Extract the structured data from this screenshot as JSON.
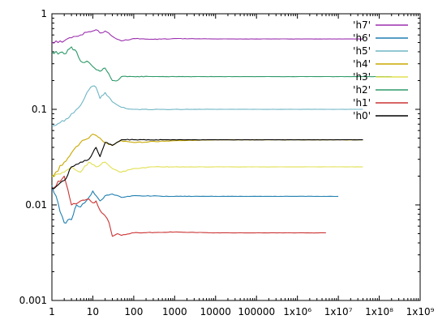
{
  "chart_data": {
    "type": "line",
    "title": "",
    "xlabel": "",
    "ylabel": "",
    "xscale": "log",
    "yscale": "log",
    "xlim": [
      1,
      1000000000
    ],
    "ylim": [
      0.001,
      1
    ],
    "grid": false,
    "legend_position": "top-right",
    "x_ticks": [
      {
        "value": 1,
        "label": "1"
      },
      {
        "value": 10,
        "label": "10"
      },
      {
        "value": 100,
        "label": "100"
      },
      {
        "value": 1000,
        "label": "1000"
      },
      {
        "value": 10000,
        "label": "10000"
      },
      {
        "value": 100000,
        "label": "100000"
      },
      {
        "value": 1000000,
        "label": "1x10⁶"
      },
      {
        "value": 10000000,
        "label": "1x10⁷"
      },
      {
        "value": 100000000,
        "label": "1x10⁸"
      },
      {
        "value": 1000000000,
        "label": "1x10⁹"
      }
    ],
    "y_ticks": [
      {
        "value": 1,
        "label": "1"
      },
      {
        "value": 0.1,
        "label": "0.1"
      },
      {
        "value": 0.01,
        "label": "0.01"
      },
      {
        "value": 0.001,
        "label": "0.001"
      }
    ],
    "series": [
      {
        "name": "'h7'",
        "color": "#9b2fae",
        "x": [
          1,
          2,
          3,
          5,
          8,
          12,
          15,
          20,
          30,
          50,
          100,
          300,
          1000,
          10000,
          100000,
          1000000,
          10000000,
          40000000
        ],
        "y": [
          0.5,
          0.52,
          0.56,
          0.6,
          0.65,
          0.68,
          0.63,
          0.66,
          0.58,
          0.52,
          0.55,
          0.54,
          0.55,
          0.545,
          0.545,
          0.545,
          0.545,
          0.545
        ]
      },
      {
        "name": "'h6'",
        "color": "#1f7fb0",
        "x": [
          1,
          2,
          3,
          4,
          5,
          8,
          10,
          15,
          20,
          30,
          50,
          100,
          1000,
          10000,
          100000,
          1000000,
          10000000
        ],
        "y": [
          0.016,
          0.0065,
          0.007,
          0.01,
          0.0095,
          0.012,
          0.014,
          0.011,
          0.0125,
          0.013,
          0.012,
          0.0125,
          0.0123,
          0.0123,
          0.0123,
          0.0123,
          0.0123
        ]
      },
      {
        "name": "'h5'",
        "color": "#6fb6c6",
        "x": [
          1,
          2,
          3,
          5,
          8,
          10,
          12,
          15,
          20,
          30,
          50,
          100,
          1000,
          10000,
          100000,
          1000000,
          10000000,
          40000000
        ],
        "y": [
          0.068,
          0.075,
          0.09,
          0.11,
          0.16,
          0.175,
          0.17,
          0.13,
          0.15,
          0.12,
          0.105,
          0.1,
          0.1,
          0.1,
          0.1,
          0.1,
          0.1,
          0.1
        ]
      },
      {
        "name": "'h4'",
        "color": "#c9a800",
        "x": [
          1,
          2,
          3,
          5,
          8,
          10,
          15,
          20,
          30,
          50,
          100,
          1000,
          10000,
          100000,
          1000000,
          10000000,
          40000000
        ],
        "y": [
          0.02,
          0.028,
          0.035,
          0.045,
          0.05,
          0.055,
          0.05,
          0.045,
          0.042,
          0.047,
          0.045,
          0.047,
          0.048,
          0.048,
          0.048,
          0.048,
          0.048
        ]
      },
      {
        "name": "'h3'",
        "color": "#e0e052",
        "x": [
          1,
          2,
          3,
          5,
          8,
          12,
          20,
          30,
          50,
          100,
          300,
          1000,
          10000,
          100000,
          1000000,
          10000000,
          40000000
        ],
        "y": [
          0.02,
          0.022,
          0.025,
          0.022,
          0.028,
          0.025,
          0.028,
          0.024,
          0.022,
          0.024,
          0.025,
          0.025,
          0.025,
          0.025,
          0.025,
          0.025,
          0.025
        ]
      },
      {
        "name": "'h2'",
        "color": "#2e9a6a",
        "x": [
          1,
          2,
          3,
          4,
          5,
          8,
          10,
          15,
          20,
          30,
          40,
          50,
          100,
          300,
          1000,
          10000,
          100000,
          1000000,
          10000000,
          100000000,
          200000000
        ],
        "y": [
          0.4,
          0.38,
          0.45,
          0.4,
          0.32,
          0.31,
          0.28,
          0.25,
          0.27,
          0.2,
          0.2,
          0.22,
          0.22,
          0.22,
          0.22,
          0.22,
          0.22,
          0.22,
          0.22,
          0.22,
          0.22
        ]
      },
      {
        "name": "'h1'",
        "color": "#cc3333",
        "x": [
          1,
          2,
          3,
          5,
          8,
          10,
          12,
          15,
          20,
          25,
          30,
          40,
          50,
          100,
          1000,
          10000,
          100000,
          1000000,
          5000000
        ],
        "y": [
          0.015,
          0.02,
          0.01,
          0.011,
          0.0115,
          0.0105,
          0.011,
          0.0088,
          0.0077,
          0.0065,
          0.0047,
          0.005,
          0.0048,
          0.0051,
          0.0052,
          0.0051,
          0.0051,
          0.0051,
          0.0051
        ]
      },
      {
        "name": "'h0'",
        "color": "#000000",
        "x": [
          1,
          2,
          3,
          5,
          8,
          10,
          12,
          15,
          20,
          30,
          50,
          100,
          1000,
          10000,
          100000,
          1000000,
          10000000,
          40000000
        ],
        "y": [
          0.015,
          0.018,
          0.025,
          0.028,
          0.03,
          0.035,
          0.04,
          0.032,
          0.045,
          0.042,
          0.048,
          0.048,
          0.048,
          0.048,
          0.048,
          0.048,
          0.048,
          0.048
        ]
      }
    ]
  }
}
